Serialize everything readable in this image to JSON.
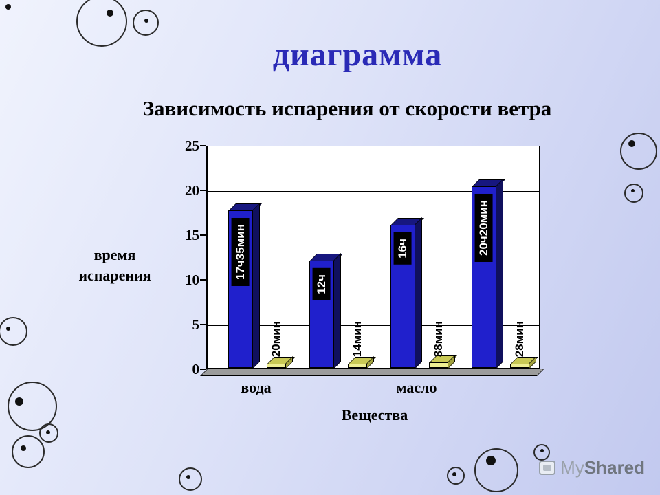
{
  "chart_data": {
    "type": "bar",
    "title": "диаграмма",
    "subtitle": "Зависимость испарения от скорости ветра",
    "xlabel": "Вещества",
    "ylabel": "время испарения",
    "ylim": [
      0,
      25
    ],
    "ytick_labels": [
      "25",
      "20",
      "15",
      "10",
      "5",
      "0"
    ],
    "grid": true,
    "legend": false,
    "categories": [
      "вода",
      "масло"
    ],
    "bar_colors": {
      "blue": "#2020cc",
      "yellow": "#eeee93"
    },
    "bars": [
      {
        "category": "вода",
        "color": "#2020cc",
        "label": "17ч35мин",
        "hours": 17.58
      },
      {
        "category": "вода",
        "color": "#eeee93",
        "label": "20мин",
        "hours": 0.33
      },
      {
        "category": "вода",
        "color": "#2020cc",
        "label": "12ч",
        "hours": 12.0
      },
      {
        "category": "вода",
        "color": "#eeee93",
        "label": "14мин",
        "hours": 0.23
      },
      {
        "category": "масло",
        "color": "#2020cc",
        "label": "16ч",
        "hours": 16.0
      },
      {
        "category": "масло",
        "color": "#eeee93",
        "label": "38мин",
        "hours": 0.63
      },
      {
        "category": "масло",
        "color": "#2020cc",
        "label": "20ч20мин",
        "hours": 20.33
      },
      {
        "category": "масло",
        "color": "#eeee93",
        "label": "28мин",
        "hours": 0.47
      }
    ]
  },
  "watermark": {
    "part1": "My",
    "part2": "Shared"
  }
}
